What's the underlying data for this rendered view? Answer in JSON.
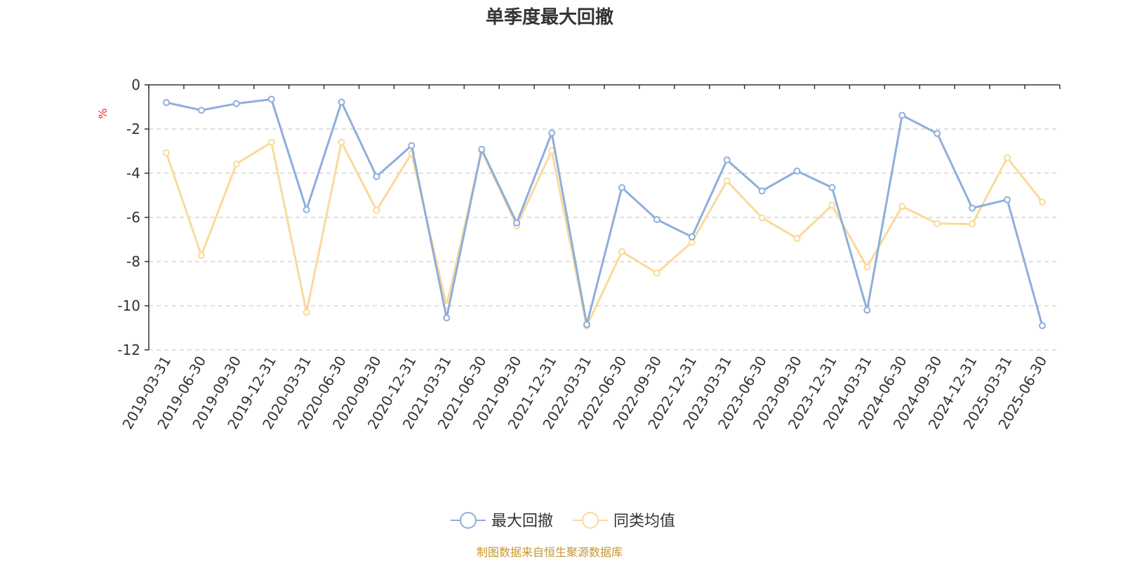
{
  "chart_data": {
    "type": "line",
    "title": "单季度最大回撤",
    "ylabel": "%",
    "ylim": [
      -12,
      0
    ],
    "yticks": [
      0,
      -2,
      -4,
      -6,
      -8,
      -10,
      -12
    ],
    "grid": true,
    "legend_position": "bottom-center",
    "categories": [
      "2019-03-31",
      "2019-06-30",
      "2019-09-30",
      "2019-12-31",
      "2020-03-31",
      "2020-06-30",
      "2020-09-30",
      "2020-12-31",
      "2021-03-31",
      "2021-06-30",
      "2021-09-30",
      "2021-12-31",
      "2022-03-31",
      "2022-06-30",
      "2022-09-30",
      "2022-12-31",
      "2023-03-31",
      "2023-06-30",
      "2023-09-30",
      "2023-12-31",
      "2024-03-31",
      "2024-06-30",
      "2024-09-30",
      "2024-12-31",
      "2025-03-31",
      "2025-06-30"
    ],
    "series": [
      {
        "name": "最大回撤",
        "color": "#8eaedb",
        "values": [
          -0.8,
          -1.15,
          -0.85,
          -0.65,
          -5.65,
          -0.78,
          -4.15,
          -2.75,
          -10.55,
          -2.92,
          -6.25,
          -2.18,
          -10.85,
          -4.65,
          -6.1,
          -6.88,
          -3.4,
          -4.8,
          -3.9,
          -4.65,
          -10.2,
          -1.38,
          -2.2,
          -5.58,
          -5.2,
          -10.9
        ]
      },
      {
        "name": "同类均值",
        "color": "#fbd99a",
        "values": [
          -3.08,
          -7.72,
          -3.58,
          -2.6,
          -10.3,
          -2.6,
          -5.68,
          -3.1,
          -10.0,
          -2.98,
          -6.38,
          -2.98,
          -10.92,
          -7.55,
          -8.52,
          -7.12,
          -4.35,
          -6.02,
          -6.95,
          -5.45,
          -8.25,
          -5.5,
          -6.28,
          -6.3,
          -3.3,
          -5.3
        ]
      }
    ]
  },
  "footer": {
    "source": "制图数据来自恒生聚源数据库",
    "source_color": "#c8962e"
  },
  "colors": {
    "unit_label": "#e0302a",
    "axis": "#333333",
    "grid": "#cccccc"
  }
}
